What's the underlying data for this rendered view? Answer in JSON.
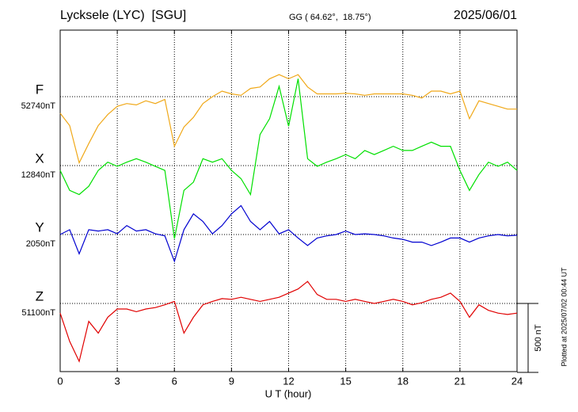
{
  "chart_data": {
    "type": "line",
    "title": "Lycksele (LYC)  [SGU]",
    "subtitle": "GG ( 64.62°,  18.75°)",
    "date": "2025/06/01",
    "x_label": "U T (hour)",
    "footnote": "Plotted at 2025/07/02 00:44 UT",
    "scale_bar": {
      "value": 500,
      "label": "500 nT"
    },
    "xlim": [
      0,
      24
    ],
    "xticks": [
      0,
      3,
      6,
      9,
      12,
      15,
      18,
      21,
      24
    ],
    "grid": true,
    "x": [
      0,
      0.5,
      1,
      1.5,
      2,
      2.5,
      3,
      3.5,
      4,
      4.5,
      5,
      5.5,
      6,
      6.5,
      7,
      7.5,
      8,
      8.5,
      9,
      9.5,
      10,
      10.5,
      11,
      11.5,
      12,
      12.5,
      13,
      13.5,
      14,
      14.5,
      15,
      15.5,
      16,
      16.5,
      17,
      17.5,
      18,
      18.5,
      19,
      19.5,
      20,
      20.5,
      21,
      21.5,
      22,
      22.5,
      23,
      23.5,
      24
    ],
    "series": [
      {
        "name": "F",
        "color": "#f0a818",
        "baseline": {
          "value": 52740,
          "label": "52740nT"
        },
        "values": [
          52620,
          52530,
          52260,
          52400,
          52530,
          52610,
          52670,
          52690,
          52680,
          52710,
          52690,
          52720,
          52380,
          52520,
          52590,
          52690,
          52740,
          52780,
          52760,
          52750,
          52800,
          52810,
          52870,
          52900,
          52870,
          52900,
          52810,
          52760,
          52760,
          52760,
          52765,
          52760,
          52750,
          52760,
          52760,
          52760,
          52760,
          52750,
          52730,
          52780,
          52780,
          52760,
          52780,
          52580,
          52710,
          52690,
          52670,
          52650,
          52650
        ]
      },
      {
        "name": "X",
        "color": "#00e000",
        "baseline": {
          "value": 12840,
          "label": "12840nT"
        },
        "values": [
          12805,
          12660,
          12630,
          12690,
          12805,
          12865,
          12835,
          12865,
          12890,
          12865,
          12835,
          12805,
          12310,
          12660,
          12720,
          12890,
          12865,
          12890,
          12805,
          12745,
          12630,
          13065,
          13180,
          13415,
          13125,
          13470,
          12890,
          12835,
          12865,
          12890,
          12920,
          12890,
          12950,
          12920,
          12950,
          12980,
          12950,
          12950,
          12980,
          13010,
          12980,
          12980,
          12805,
          12660,
          12775,
          12865,
          12835,
          12865,
          12805
        ]
      },
      {
        "name": "Y",
        "color": "#0000d0",
        "baseline": {
          "value": 2050,
          "label": "2050nT"
        },
        "values": [
          2050,
          2085,
          1910,
          2085,
          2075,
          2085,
          2055,
          2115,
          2075,
          2085,
          2055,
          2040,
          1855,
          2085,
          2200,
          2145,
          2055,
          2115,
          2200,
          2260,
          2145,
          2085,
          2145,
          2055,
          2085,
          2025,
          1970,
          2025,
          2040,
          2050,
          2075,
          2050,
          2055,
          2050,
          2040,
          2025,
          2015,
          1995,
          1995,
          1970,
          1995,
          2025,
          2025,
          1995,
          2025,
          2040,
          2050,
          2040,
          2045
        ]
      },
      {
        "name": "Z",
        "color": "#e00000",
        "baseline": {
          "value": 51100,
          "label": "51100nT"
        },
        "values": [
          51030,
          50825,
          50680,
          50970,
          50885,
          51000,
          51060,
          51060,
          51040,
          51060,
          51070,
          51090,
          51115,
          50885,
          51000,
          51090,
          51115,
          51135,
          51130,
          51145,
          51130,
          51115,
          51130,
          51145,
          51175,
          51205,
          51260,
          51165,
          51130,
          51130,
          51115,
          51130,
          51115,
          51100,
          51115,
          51130,
          51115,
          51090,
          51105,
          51130,
          51145,
          51175,
          51115,
          51000,
          51090,
          51050,
          51030,
          51020,
          51030
        ]
      }
    ]
  }
}
